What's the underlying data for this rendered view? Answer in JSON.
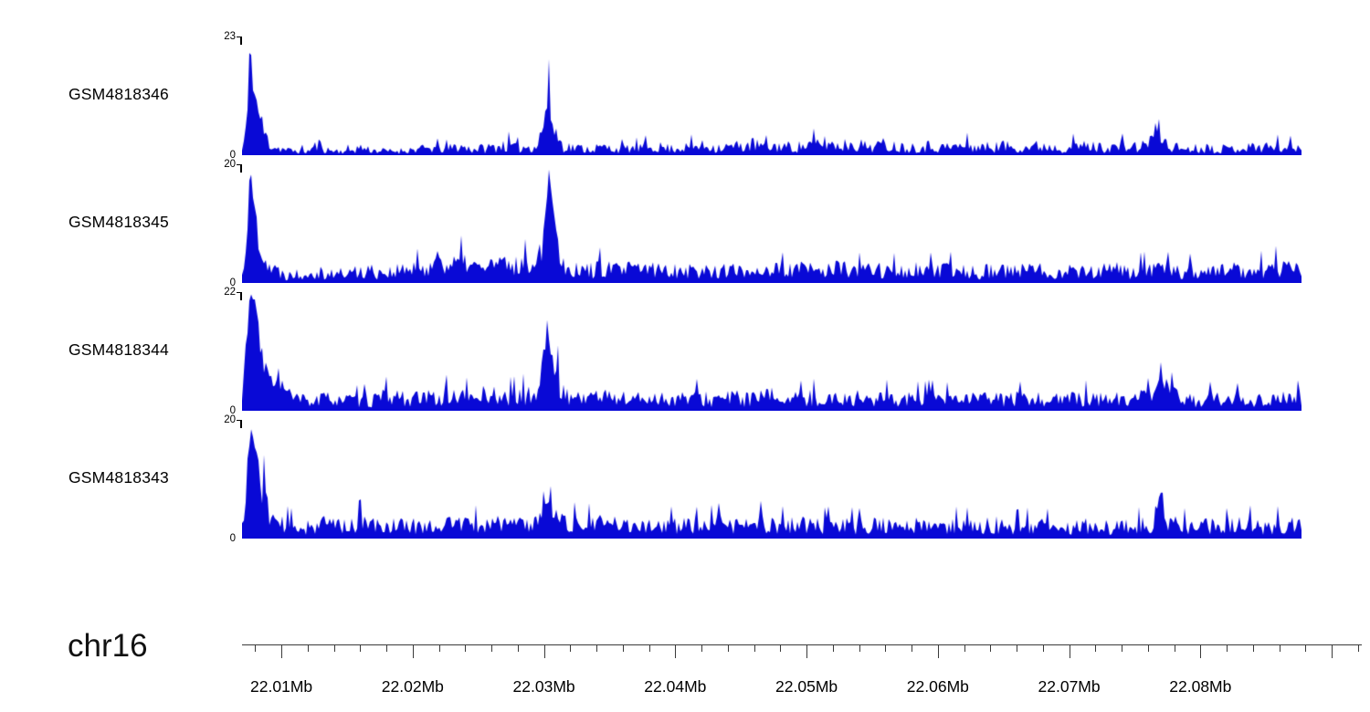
{
  "chart_data": {
    "type": "area",
    "title": "",
    "description": "Genome browser coverage tracks on chr16, four ChIP/ATAC-style signal tracks rendered as filled blue area plots over genomic coordinates",
    "signal_color": "#0909d6",
    "x_range": [
      22.007,
      22.0877
    ],
    "grid": false,
    "legend": "none",
    "axis": {
      "chrom_label": "chr16",
      "unit": "Mb",
      "ruler_range_mb": [
        22.007,
        22.0923
      ],
      "minor_tick_step_mb": 0.002,
      "tick_labels": [
        {
          "mb": 22.01,
          "label": "22.01Mb"
        },
        {
          "mb": 22.02,
          "label": "22.02Mb"
        },
        {
          "mb": 22.03,
          "label": "22.03Mb"
        },
        {
          "mb": 22.04,
          "label": "22.04Mb"
        },
        {
          "mb": 22.05,
          "label": "22.05Mb"
        },
        {
          "mb": 22.06,
          "label": "22.06Mb"
        },
        {
          "mb": 22.07,
          "label": "22.07Mb"
        },
        {
          "mb": 22.08,
          "label": "22.08Mb"
        }
      ]
    },
    "tracks": [
      {
        "label": "GSM4818346",
        "ymax": 23,
        "ymin": 0,
        "seed": 11,
        "envelope": [
          [
            22.007,
            1.5
          ],
          [
            22.0074,
            10
          ],
          [
            22.0076,
            23
          ],
          [
            22.0079,
            15
          ],
          [
            22.0083,
            11
          ],
          [
            22.0087,
            6.5
          ],
          [
            22.0091,
            4
          ],
          [
            22.0096,
            2.6
          ],
          [
            22.0105,
            1.6
          ],
          [
            22.012,
            1.3
          ],
          [
            22.0128,
            3.6
          ],
          [
            22.0136,
            1.6
          ],
          [
            22.015,
            1.3
          ],
          [
            22.016,
            2.6
          ],
          [
            22.017,
            1.6
          ],
          [
            22.0185,
            1.3
          ],
          [
            22.02,
            1.9
          ],
          [
            22.0215,
            2.3
          ],
          [
            22.0225,
            2.0
          ],
          [
            22.0235,
            3.0
          ],
          [
            22.0245,
            2.0
          ],
          [
            22.026,
            2.6
          ],
          [
            22.027,
            3.4
          ],
          [
            22.028,
            2.4
          ],
          [
            22.0295,
            3.2
          ],
          [
            22.0303,
            13.5
          ],
          [
            22.0307,
            8.5
          ],
          [
            22.0313,
            3.8
          ],
          [
            22.032,
            2.6
          ],
          [
            22.0335,
            2.1
          ],
          [
            22.0345,
            2.6
          ],
          [
            22.0355,
            2.1
          ],
          [
            22.037,
            2.3
          ],
          [
            22.0385,
            2.9
          ],
          [
            22.0395,
            2.3
          ],
          [
            22.041,
            2.6
          ],
          [
            22.042,
            3.1
          ],
          [
            22.0435,
            2.6
          ],
          [
            22.045,
            3.1
          ],
          [
            22.046,
            3.6
          ],
          [
            22.047,
            2.6
          ],
          [
            22.048,
            3.1
          ],
          [
            22.049,
            2.6
          ],
          [
            22.0505,
            3.5
          ],
          [
            22.0515,
            4.1
          ],
          [
            22.0525,
            3.1
          ],
          [
            22.0535,
            4.0
          ],
          [
            22.0545,
            3.0
          ],
          [
            22.056,
            3.5
          ],
          [
            22.0575,
            2.6
          ],
          [
            22.059,
            3.1
          ],
          [
            22.0605,
            2.6
          ],
          [
            22.062,
            3.1
          ],
          [
            22.0635,
            2.6
          ],
          [
            22.065,
            3.1
          ],
          [
            22.0665,
            2.6
          ],
          [
            22.068,
            3.1
          ],
          [
            22.0695,
            2.6
          ],
          [
            22.071,
            3.1
          ],
          [
            22.0725,
            2.6
          ],
          [
            22.074,
            2.9
          ],
          [
            22.0755,
            2.6
          ],
          [
            22.0768,
            7.6
          ],
          [
            22.0775,
            3.1
          ],
          [
            22.079,
            2.1
          ],
          [
            22.0805,
            2.6
          ],
          [
            22.082,
            2.1
          ],
          [
            22.0835,
            2.6
          ],
          [
            22.085,
            2.9
          ],
          [
            22.0865,
            2.6
          ],
          [
            22.0877,
            2.6
          ]
        ]
      },
      {
        "label": "GSM4818345",
        "ymax": 20,
        "ymin": 0,
        "seed": 22,
        "envelope": [
          [
            22.007,
            2
          ],
          [
            22.0074,
            12
          ],
          [
            22.0076,
            20
          ],
          [
            22.0079,
            15
          ],
          [
            22.0083,
            10
          ],
          [
            22.0088,
            6
          ],
          [
            22.0093,
            4
          ],
          [
            22.01,
            3
          ],
          [
            22.011,
            2.6
          ],
          [
            22.0125,
            3.6
          ],
          [
            22.014,
            2.6
          ],
          [
            22.0155,
            3.1
          ],
          [
            22.0165,
            3.6
          ],
          [
            22.018,
            3.1
          ],
          [
            22.0195,
            3.6
          ],
          [
            22.021,
            4.1
          ],
          [
            22.022,
            6.6
          ],
          [
            22.0228,
            4.6
          ],
          [
            22.024,
            5.6
          ],
          [
            22.025,
            4.1
          ],
          [
            22.0262,
            5.1
          ],
          [
            22.0275,
            4.6
          ],
          [
            22.0288,
            5.1
          ],
          [
            22.0298,
            8
          ],
          [
            22.0304,
            20
          ],
          [
            22.0308,
            13
          ],
          [
            22.0313,
            6
          ],
          [
            22.032,
            4.1
          ],
          [
            22.033,
            3.6
          ],
          [
            22.0345,
            4.1
          ],
          [
            22.036,
            3.6
          ],
          [
            22.0375,
            4.1
          ],
          [
            22.039,
            3.6
          ],
          [
            22.0405,
            3.9
          ],
          [
            22.042,
            3.3
          ],
          [
            22.0435,
            3.7
          ],
          [
            22.045,
            3.3
          ],
          [
            22.0465,
            3.9
          ],
          [
            22.048,
            3.5
          ],
          [
            22.0495,
            3.9
          ],
          [
            22.051,
            3.5
          ],
          [
            22.0525,
            4.1
          ],
          [
            22.054,
            3.5
          ],
          [
            22.0555,
            3.9
          ],
          [
            22.057,
            3.3
          ],
          [
            22.0585,
            3.7
          ],
          [
            22.06,
            3.3
          ],
          [
            22.0615,
            3.7
          ],
          [
            22.063,
            3.3
          ],
          [
            22.0645,
            3.7
          ],
          [
            22.066,
            3.3
          ],
          [
            22.0675,
            3.7
          ],
          [
            22.069,
            3.3
          ],
          [
            22.0705,
            3.7
          ],
          [
            22.072,
            3.3
          ],
          [
            22.0735,
            3.7
          ],
          [
            22.075,
            3.3
          ],
          [
            22.0765,
            3.9
          ],
          [
            22.078,
            3.5
          ],
          [
            22.0795,
            3.3
          ],
          [
            22.081,
            3.5
          ],
          [
            22.0825,
            3.7
          ],
          [
            22.084,
            3.3
          ],
          [
            22.0855,
            4.3
          ],
          [
            22.087,
            3.9
          ],
          [
            22.0877,
            3.6
          ]
        ]
      },
      {
        "label": "GSM4818344",
        "ymax": 22,
        "ymin": 0,
        "seed": 33,
        "envelope": [
          [
            22.007,
            3
          ],
          [
            22.0073,
            15
          ],
          [
            22.0076,
            22
          ],
          [
            22.008,
            21
          ],
          [
            22.0084,
            14
          ],
          [
            22.009,
            8
          ],
          [
            22.0096,
            10
          ],
          [
            22.0102,
            6
          ],
          [
            22.011,
            3.6
          ],
          [
            22.0125,
            3.1
          ],
          [
            22.014,
            4.1
          ],
          [
            22.0155,
            3.1
          ],
          [
            22.017,
            3.6
          ],
          [
            22.0185,
            4.6
          ],
          [
            22.02,
            3.6
          ],
          [
            22.0215,
            4.1
          ],
          [
            22.023,
            4.6
          ],
          [
            22.0245,
            4.1
          ],
          [
            22.0258,
            5.1
          ],
          [
            22.027,
            4.1
          ],
          [
            22.0283,
            4.6
          ],
          [
            22.0295,
            5.1
          ],
          [
            22.0303,
            18
          ],
          [
            22.0308,
            10
          ],
          [
            22.0315,
            5.1
          ],
          [
            22.0325,
            4.1
          ],
          [
            22.034,
            4.6
          ],
          [
            22.0355,
            4.1
          ],
          [
            22.037,
            3.6
          ],
          [
            22.0385,
            4.1
          ],
          [
            22.04,
            3.6
          ],
          [
            22.0415,
            4.1
          ],
          [
            22.043,
            3.6
          ],
          [
            22.0445,
            4.1
          ],
          [
            22.046,
            3.6
          ],
          [
            22.0475,
            4.6
          ],
          [
            22.049,
            3.6
          ],
          [
            22.0505,
            4.1
          ],
          [
            22.052,
            3.6
          ],
          [
            22.0535,
            4.1
          ],
          [
            22.055,
            3.6
          ],
          [
            22.0565,
            4.1
          ],
          [
            22.058,
            3.6
          ],
          [
            22.0595,
            3.9
          ],
          [
            22.061,
            3.5
          ],
          [
            22.0625,
            3.9
          ],
          [
            22.064,
            3.5
          ],
          [
            22.0655,
            3.9
          ],
          [
            22.067,
            3.5
          ],
          [
            22.0685,
            3.9
          ],
          [
            22.07,
            3.5
          ],
          [
            22.0715,
            3.9
          ],
          [
            22.073,
            3.5
          ],
          [
            22.0745,
            3.9
          ],
          [
            22.076,
            4.1
          ],
          [
            22.077,
            10
          ],
          [
            22.0776,
            5.1
          ],
          [
            22.079,
            3.5
          ],
          [
            22.0805,
            3.7
          ],
          [
            22.082,
            3.3
          ],
          [
            22.0835,
            3.7
          ],
          [
            22.085,
            3.5
          ],
          [
            22.0865,
            4.1
          ],
          [
            22.0877,
            3.7
          ]
        ]
      },
      {
        "label": "GSM4818343",
        "ymax": 20,
        "ymin": 0,
        "seed": 44,
        "envelope": [
          [
            22.007,
            3
          ],
          [
            22.0074,
            14
          ],
          [
            22.0077,
            19
          ],
          [
            22.0081,
            16
          ],
          [
            22.0086,
            10
          ],
          [
            22.0092,
            6
          ],
          [
            22.01,
            4
          ],
          [
            22.011,
            3.3
          ],
          [
            22.0125,
            3.7
          ],
          [
            22.014,
            4.3
          ],
          [
            22.015,
            3.5
          ],
          [
            22.016,
            4.5
          ],
          [
            22.0175,
            3.5
          ],
          [
            22.019,
            3.9
          ],
          [
            22.0205,
            3.5
          ],
          [
            22.022,
            3.9
          ],
          [
            22.0235,
            4.3
          ],
          [
            22.025,
            3.7
          ],
          [
            22.0265,
            4.5
          ],
          [
            22.028,
            3.9
          ],
          [
            22.0295,
            4.5
          ],
          [
            22.0303,
            11
          ],
          [
            22.0308,
            7
          ],
          [
            22.0315,
            4.5
          ],
          [
            22.033,
            3.9
          ],
          [
            22.0345,
            4.3
          ],
          [
            22.036,
            3.7
          ],
          [
            22.0375,
            4.1
          ],
          [
            22.039,
            3.5
          ],
          [
            22.0405,
            3.9
          ],
          [
            22.042,
            3.5
          ],
          [
            22.0435,
            4.1
          ],
          [
            22.045,
            3.7
          ],
          [
            22.0465,
            4.3
          ],
          [
            22.048,
            3.7
          ],
          [
            22.0495,
            4.1
          ],
          [
            22.051,
            3.5
          ],
          [
            22.0525,
            3.9
          ],
          [
            22.054,
            3.5
          ],
          [
            22.0555,
            3.9
          ],
          [
            22.057,
            3.3
          ],
          [
            22.0585,
            3.7
          ],
          [
            22.06,
            3.3
          ],
          [
            22.0615,
            3.7
          ],
          [
            22.063,
            3.5
          ],
          [
            22.0645,
            3.9
          ],
          [
            22.066,
            3.3
          ],
          [
            22.0675,
            3.7
          ],
          [
            22.069,
            3.3
          ],
          [
            22.0705,
            3.7
          ],
          [
            22.072,
            3.5
          ],
          [
            22.0735,
            3.3
          ],
          [
            22.075,
            3.5
          ],
          [
            22.0763,
            4.1
          ],
          [
            22.077,
            9
          ],
          [
            22.0776,
            4.6
          ],
          [
            22.079,
            3.3
          ],
          [
            22.0805,
            3.7
          ],
          [
            22.082,
            3.5
          ],
          [
            22.0835,
            3.9
          ],
          [
            22.085,
            3.5
          ],
          [
            22.0865,
            3.9
          ],
          [
            22.0877,
            3.5
          ]
        ]
      }
    ]
  }
}
